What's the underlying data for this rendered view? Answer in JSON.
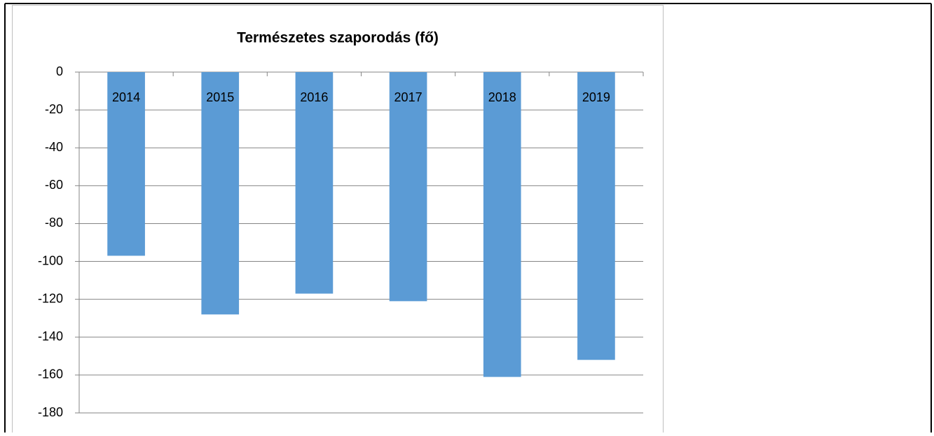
{
  "chart_data": {
    "type": "bar",
    "title": "Természetes szaporodás (fő)",
    "categories": [
      "2014",
      "2015",
      "2016",
      "2017",
      "2018",
      "2019"
    ],
    "values": [
      -97,
      -128,
      -117,
      -121,
      -161,
      -152
    ],
    "color": "#5b9bd5",
    "ylim": [
      -180,
      0
    ],
    "yticks": [
      0,
      -20,
      -40,
      -60,
      -80,
      -100,
      -120,
      -140,
      -160,
      -180
    ],
    "grid": true
  }
}
